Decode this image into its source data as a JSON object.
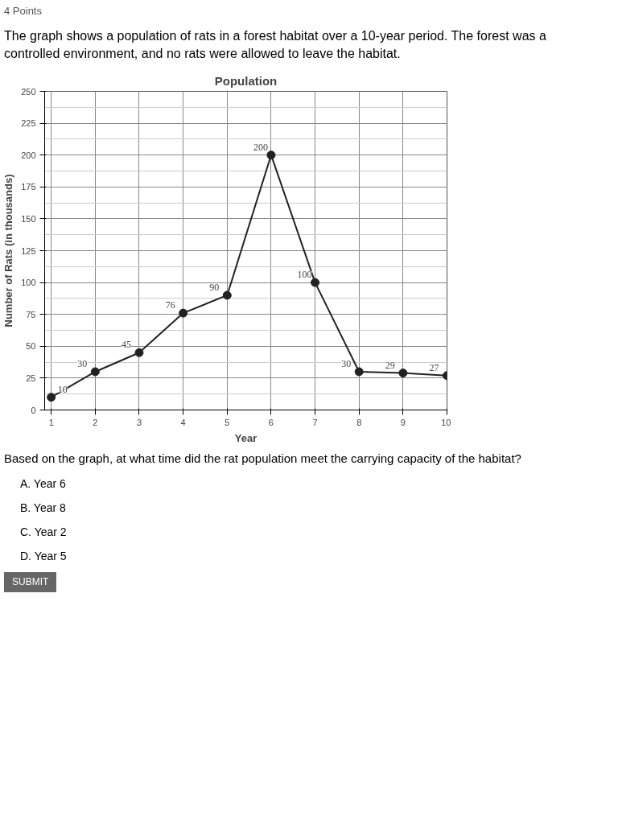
{
  "chart_data": {
    "type": "line",
    "title": "Population",
    "xlabel": "Year",
    "ylabel": "Number of Rats (in thousands)",
    "x": [
      1,
      2,
      3,
      4,
      5,
      6,
      7,
      8,
      9,
      10
    ],
    "series": [
      {
        "color": "#222222",
        "values": [
          10,
          30,
          45,
          76,
          90,
          200,
          100,
          30,
          29,
          27
        ]
      }
    ],
    "xlim": [
      0.85,
      10
    ],
    "xticks": [
      1,
      2,
      3,
      4,
      5,
      6,
      7,
      8,
      9,
      10
    ],
    "ylim": [
      0,
      250
    ],
    "yticks": [
      0,
      25,
      50,
      75,
      100,
      125,
      150,
      175,
      200,
      225,
      250
    ],
    "grid": true,
    "marker": "circle",
    "line_style": "solid",
    "data_labels": true,
    "annotations": [
      "4 Points",
      "The graph shows a population of rats in a forest habitat over a 10-year period. The forest was a controlled environment, and no rats were allowed to leave the habitat.",
      "Based on the graph, at what time did the rat population meet the carrying capacity of the habitat?",
      "A. Year 6",
      "B. Year 8",
      "C. Year 2",
      "D. Year 5",
      "SUBMIT"
    ]
  }
}
